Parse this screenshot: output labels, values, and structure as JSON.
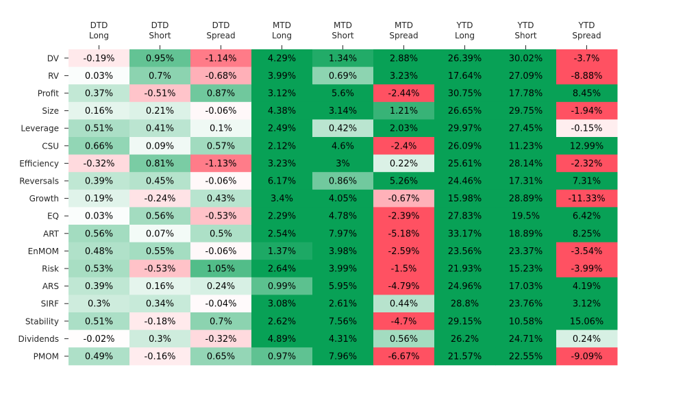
{
  "chart_data": {
    "type": "heatmap",
    "columns": [
      [
        "DTD",
        "Long"
      ],
      [
        "DTD",
        "Short"
      ],
      [
        "DTD",
        "Spread"
      ],
      [
        "MTD",
        "Long"
      ],
      [
        "MTD",
        "Short"
      ],
      [
        "MTD",
        "Spread"
      ],
      [
        "YTD",
        "Long"
      ],
      [
        "YTD",
        "Short"
      ],
      [
        "YTD",
        "Spread"
      ]
    ],
    "rows": [
      "DV",
      "RV",
      "Profit",
      "Size",
      "Leverage",
      "CSU",
      "Efficiency",
      "Reversals",
      "Growth",
      "EQ",
      "ART",
      "EnMOM",
      "Risk",
      "ARS",
      "SIRF",
      "Stability",
      "Dividends",
      "PMOM"
    ],
    "values": [
      [
        -0.19,
        0.95,
        -1.14,
        4.29,
        1.34,
        2.88,
        26.39,
        30.02,
        -3.7
      ],
      [
        0.03,
        0.7,
        -0.68,
        3.99,
        0.69,
        3.23,
        17.64,
        27.09,
        -8.88
      ],
      [
        0.37,
        -0.51,
        0.87,
        3.12,
        5.6,
        -2.44,
        30.75,
        17.78,
        8.45
      ],
      [
        0.16,
        0.21,
        -0.06,
        4.38,
        3.14,
        1.21,
        26.65,
        29.75,
        -1.94
      ],
      [
        0.51,
        0.41,
        0.1,
        2.49,
        0.42,
        2.03,
        29.97,
        27.45,
        -0.15
      ],
      [
        0.66,
        0.09,
        0.57,
        2.12,
        4.6,
        -2.4,
        26.09,
        11.23,
        12.99
      ],
      [
        -0.32,
        0.81,
        -1.13,
        3.23,
        3.0,
        0.22,
        25.61,
        28.14,
        -2.32
      ],
      [
        0.39,
        0.45,
        -0.06,
        6.17,
        0.86,
        5.26,
        24.46,
        17.31,
        7.31
      ],
      [
        0.19,
        -0.24,
        0.43,
        3.4,
        4.05,
        -0.67,
        15.98,
        28.89,
        -11.33
      ],
      [
        0.03,
        0.56,
        -0.53,
        2.29,
        4.78,
        -2.39,
        27.83,
        19.5,
        6.42
      ],
      [
        0.56,
        0.07,
        0.5,
        2.54,
        7.97,
        -5.18,
        33.17,
        18.89,
        8.25
      ],
      [
        0.48,
        0.55,
        -0.06,
        1.37,
        3.98,
        -2.59,
        23.56,
        23.37,
        -3.54
      ],
      [
        0.53,
        -0.53,
        1.05,
        2.64,
        3.99,
        -1.5,
        21.93,
        15.23,
        -3.99
      ],
      [
        0.39,
        0.16,
        0.24,
        0.99,
        5.95,
        -4.79,
        24.96,
        17.03,
        4.19
      ],
      [
        0.3,
        0.34,
        -0.04,
        3.08,
        2.61,
        0.44,
        28.8,
        23.76,
        3.12
      ],
      [
        0.51,
        -0.18,
        0.7,
        2.62,
        7.56,
        -4.7,
        29.15,
        10.58,
        15.06
      ],
      [
        -0.02,
        0.3,
        -0.32,
        4.89,
        4.31,
        0.56,
        26.2,
        24.71,
        0.24
      ],
      [
        0.49,
        -0.16,
        0.65,
        0.97,
        7.96,
        -6.67,
        21.57,
        22.55,
        -9.09
      ]
    ],
    "value_suffix": "%",
    "color_scale": {
      "negative": "#ff5162",
      "zero": "#ffffff",
      "positive": "#08a156",
      "center": 0,
      "saturation_abs": 1.5
    },
    "colorbar": false,
    "grid": false
  }
}
